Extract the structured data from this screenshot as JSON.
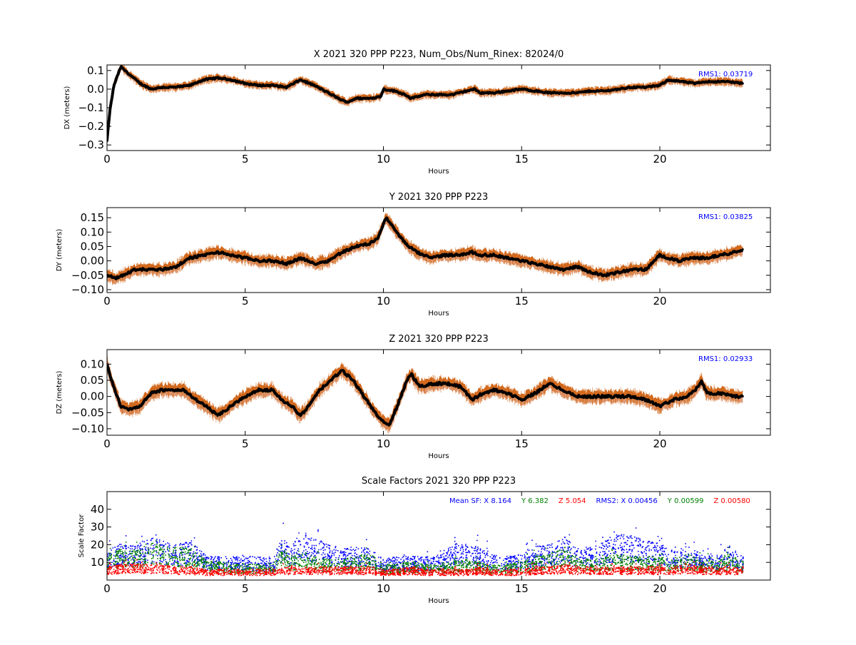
{
  "chart_data": [
    {
      "type": "scatter",
      "title": "X 2021 320 PPP  P223, Num_Obs/Num_Rinex: 82024/0",
      "xlabel": "Hours",
      "ylabel": "DX (meters)",
      "xlim": [
        0,
        24
      ],
      "ylim": [
        -0.33,
        0.13
      ],
      "xticks": [
        0,
        5,
        10,
        15,
        20
      ],
      "yticks": [
        0.1,
        0.0,
        -0.1,
        -0.2,
        -0.3
      ],
      "ytick_labels": [
        "0.1",
        "0.0",
        "−0.1",
        "−0.2",
        "−0.3"
      ],
      "annotation": "RMS1:  0.03719",
      "annotation_color": "#0000ff",
      "series_colors": {
        "value": "#000000",
        "error_upper": "#d2691e",
        "error_lower": "#e09a72"
      },
      "x": [
        0,
        0.1,
        0.25,
        0.5,
        0.8,
        1.2,
        1.6,
        2.0,
        2.5,
        3.0,
        3.5,
        4.0,
        4.5,
        5.0,
        5.5,
        6.0,
        6.5,
        7.0,
        7.5,
        8.0,
        8.5,
        8.7,
        9.0,
        9.5,
        9.9,
        10.0,
        10.4,
        10.8,
        11.0,
        11.5,
        12.0,
        12.5,
        13.0,
        13.3,
        13.5,
        14.0,
        14.5,
        15.0,
        15.5,
        16.0,
        16.5,
        17.0,
        17.5,
        18.0,
        18.5,
        19.0,
        19.5,
        20.0,
        20.3,
        20.8,
        21.3,
        21.6,
        22.0,
        22.5,
        23.0
      ],
      "y": [
        -0.28,
        -0.12,
        0.02,
        0.12,
        0.08,
        0.03,
        0.0,
        0.01,
        0.01,
        0.02,
        0.05,
        0.06,
        0.05,
        0.03,
        0.02,
        0.02,
        0.01,
        0.05,
        0.02,
        -0.02,
        -0.06,
        -0.07,
        -0.05,
        -0.05,
        -0.04,
        0.0,
        -0.01,
        -0.03,
        -0.05,
        -0.03,
        -0.03,
        -0.03,
        -0.01,
        0.0,
        -0.02,
        -0.02,
        -0.01,
        0.0,
        -0.01,
        -0.02,
        -0.02,
        -0.02,
        -0.01,
        -0.01,
        0.0,
        0.01,
        0.01,
        0.02,
        0.05,
        0.04,
        0.03,
        0.04,
        0.04,
        0.04,
        0.03
      ]
    },
    {
      "type": "scatter",
      "title": "Y 2021 320 PPP  P223",
      "xlabel": "Hours",
      "ylabel": "DY (meters)",
      "xlim": [
        0,
        24
      ],
      "ylim": [
        -0.11,
        0.185
      ],
      "xticks": [
        0,
        5,
        10,
        15,
        20
      ],
      "yticks": [
        0.15,
        0.1,
        0.05,
        0.0,
        -0.05,
        -0.1
      ],
      "ytick_labels": [
        "0.15",
        "0.10",
        "0.05",
        "0.00",
        "−0.05",
        "−0.10"
      ],
      "annotation": "RMS1:  0.03825",
      "annotation_color": "#0000ff",
      "series_colors": {
        "value": "#000000",
        "error_upper": "#d2691e",
        "error_lower": "#e09a72"
      },
      "x": [
        0,
        0.3,
        0.6,
        1.0,
        1.5,
        2.0,
        2.5,
        3.0,
        3.5,
        4.0,
        4.5,
        5.0,
        5.5,
        6.0,
        6.5,
        7.0,
        7.5,
        8.0,
        8.5,
        9.0,
        9.5,
        9.8,
        10.1,
        10.4,
        10.8,
        11.2,
        11.7,
        12.2,
        12.7,
        13.2,
        13.5,
        14.0,
        14.5,
        15.0,
        15.5,
        16.0,
        16.5,
        17.0,
        17.5,
        18.0,
        18.5,
        19.0,
        19.5,
        20.0,
        20.3,
        20.7,
        21.2,
        21.7,
        22.2,
        22.7,
        23.0
      ],
      "y": [
        -0.05,
        -0.06,
        -0.05,
        -0.03,
        -0.03,
        -0.03,
        -0.02,
        0.01,
        0.02,
        0.03,
        0.02,
        0.01,
        0.0,
        0.0,
        -0.01,
        0.01,
        -0.01,
        0.0,
        0.03,
        0.05,
        0.06,
        0.08,
        0.15,
        0.11,
        0.06,
        0.03,
        0.01,
        0.02,
        0.02,
        0.03,
        0.02,
        0.02,
        0.01,
        0.0,
        -0.01,
        -0.02,
        -0.03,
        -0.02,
        -0.04,
        -0.05,
        -0.04,
        -0.03,
        -0.03,
        0.02,
        0.01,
        0.0,
        0.01,
        0.01,
        0.02,
        0.03,
        0.04
      ]
    },
    {
      "type": "scatter",
      "title": "Z 2021 320 PPP  P223",
      "xlabel": "Hours",
      "ylabel": "DZ (meters)",
      "xlim": [
        0,
        24
      ],
      "ylim": [
        -0.12,
        0.145
      ],
      "xticks": [
        0,
        5,
        10,
        15,
        20
      ],
      "yticks": [
        0.1,
        0.05,
        0.0,
        -0.05,
        -0.1
      ],
      "ytick_labels": [
        "0.10",
        "0.05",
        "0.00",
        "−0.05",
        "−0.10"
      ],
      "annotation": "RMS1:  0.02933",
      "annotation_color": "#0000ff",
      "series_colors": {
        "value": "#000000",
        "error_upper": "#d2691e",
        "error_lower": "#e09a72"
      },
      "x": [
        0,
        0.2,
        0.5,
        0.8,
        1.2,
        1.6,
        2.0,
        2.4,
        2.8,
        3.2,
        3.6,
        4.0,
        4.5,
        5.0,
        5.5,
        6.0,
        6.3,
        6.7,
        7.0,
        7.3,
        7.7,
        8.1,
        8.5,
        8.9,
        9.3,
        9.7,
        10.0,
        10.2,
        10.5,
        10.8,
        11.0,
        11.3,
        11.8,
        12.3,
        12.8,
        13.2,
        13.6,
        14.0,
        14.5,
        15.0,
        15.5,
        16.0,
        16.5,
        17.0,
        17.5,
        18.0,
        18.5,
        19.0,
        19.5,
        20.0,
        20.5,
        21.0,
        21.3,
        21.5,
        21.7,
        22.2,
        22.7,
        23.0
      ],
      "y": [
        0.1,
        0.04,
        -0.03,
        -0.04,
        -0.03,
        0.01,
        0.02,
        0.02,
        0.02,
        -0.01,
        -0.03,
        -0.06,
        -0.03,
        0.0,
        0.02,
        0.02,
        -0.01,
        -0.03,
        -0.06,
        -0.03,
        0.02,
        0.05,
        0.08,
        0.05,
        0.0,
        -0.05,
        -0.08,
        -0.09,
        -0.03,
        0.04,
        0.07,
        0.03,
        0.04,
        0.04,
        0.03,
        -0.01,
        0.01,
        0.02,
        0.01,
        -0.01,
        0.01,
        0.04,
        0.02,
        0.0,
        0.0,
        0.0,
        0.0,
        0.0,
        -0.01,
        -0.03,
        -0.01,
        0.0,
        0.02,
        0.05,
        0.01,
        0.01,
        0.0,
        0.0
      ]
    },
    {
      "type": "scatter",
      "title": "Scale Factors 2021 320 PPP  P223",
      "xlabel": "Hours",
      "ylabel": "Scale Factor",
      "xlim": [
        0,
        24
      ],
      "ylim": [
        0,
        50
      ],
      "xticks": [
        0,
        5,
        10,
        15,
        20
      ],
      "yticks": [
        40,
        30,
        20,
        10
      ],
      "ytick_labels": [
        "40",
        "30",
        "20",
        "10"
      ],
      "annotation_parts": [
        {
          "text": "Mean SF: X   8.164",
          "color": "#0000ff"
        },
        {
          "text": "Y   6.382",
          "color": "#008000"
        },
        {
          "text": "Z   5.054",
          "color": "#ff0000"
        },
        {
          "text": "RMS2: X  0.00456",
          "color": "#0000ff"
        },
        {
          "text": "Y  0.00599",
          "color": "#008000"
        },
        {
          "text": "Z  0.00580",
          "color": "#ff0000"
        }
      ],
      "series": [
        {
          "name": "X",
          "color": "#0000ff",
          "x": [
            0,
            0.5,
            1.0,
            1.5,
            2.0,
            2.5,
            3.0,
            3.5,
            4.0,
            4.5,
            5.0,
            5.5,
            6.0,
            6.3,
            6.6,
            7.0,
            7.5,
            8.0,
            8.5,
            9.0,
            9.5,
            10.0,
            10.5,
            11.0,
            11.5,
            12.0,
            12.5,
            13.0,
            13.5,
            14.0,
            14.5,
            15.0,
            15.5,
            16.0,
            16.5,
            17.0,
            17.5,
            18.0,
            18.5,
            19.0,
            19.5,
            20.0,
            20.5,
            21.0,
            21.5,
            22.0,
            22.5,
            23.0
          ],
          "y": [
            12,
            14,
            13,
            17,
            15,
            14,
            15,
            10,
            9,
            9,
            9,
            9,
            8,
            18,
            12,
            20,
            16,
            14,
            12,
            13,
            12,
            8,
            9,
            9,
            9,
            10,
            14,
            14,
            13,
            10,
            9,
            10,
            13,
            14,
            17,
            12,
            13,
            16,
            18,
            17,
            15,
            14,
            12,
            13,
            10,
            9,
            13,
            9
          ]
        },
        {
          "name": "Y",
          "color": "#008000",
          "x": [
            0,
            0.5,
            1.0,
            1.5,
            2.0,
            2.5,
            3.0,
            3.5,
            4.0,
            4.5,
            5.0,
            5.5,
            6.0,
            6.3,
            6.6,
            7.0,
            7.5,
            8.0,
            8.5,
            9.0,
            9.5,
            10.0,
            10.5,
            11.0,
            11.5,
            12.0,
            12.5,
            13.0,
            13.5,
            14.0,
            14.5,
            15.0,
            15.5,
            16.0,
            16.5,
            17.0,
            17.5,
            18.0,
            18.5,
            19.0,
            19.5,
            20.0,
            20.5,
            21.0,
            21.5,
            22.0,
            22.5,
            23.0
          ],
          "y": [
            10,
            12,
            11,
            15,
            13,
            13,
            12,
            8,
            7,
            6,
            6,
            6,
            6,
            14,
            8,
            12,
            9,
            8,
            8,
            9,
            10,
            6,
            6,
            7,
            6,
            6,
            7,
            8,
            7,
            6,
            6,
            7,
            9,
            10,
            13,
            8,
            8,
            9,
            10,
            9,
            9,
            9,
            8,
            10,
            8,
            8,
            10,
            7
          ]
        },
        {
          "name": "Z",
          "color": "#ff0000",
          "x": [
            0,
            0.5,
            1.0,
            1.5,
            2.0,
            2.5,
            3.0,
            3.5,
            4.0,
            4.5,
            5.0,
            5.5,
            6.0,
            6.5,
            7.0,
            7.5,
            8.0,
            8.5,
            9.0,
            9.5,
            10.0,
            10.5,
            11.0,
            11.5,
            12.0,
            12.5,
            13.0,
            13.5,
            14.0,
            14.5,
            15.0,
            15.5,
            16.0,
            16.5,
            17.0,
            17.5,
            18.0,
            18.5,
            19.0,
            19.5,
            20.0,
            20.5,
            21.0,
            21.5,
            22.0,
            22.5,
            23.0
          ],
          "y": [
            5,
            6,
            6,
            6,
            6,
            5,
            5,
            4,
            4,
            4,
            4,
            4,
            4,
            5,
            5,
            5,
            5,
            5,
            5,
            5,
            4,
            4,
            5,
            4,
            4,
            4,
            4,
            5,
            4,
            4,
            4,
            5,
            5,
            6,
            5,
            5,
            5,
            5,
            5,
            5,
            5,
            5,
            6,
            5,
            5,
            5,
            5
          ]
        }
      ]
    }
  ]
}
